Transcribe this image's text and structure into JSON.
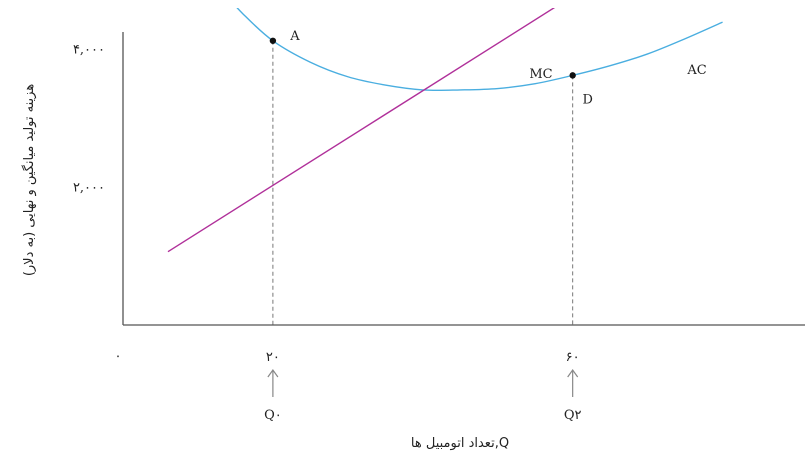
{
  "chart_data": {
    "type": "line",
    "ylabel": "هزینه تولید میانگین و نهایی (به دلار)",
    "xlabel": "Q,تعداد اتومبیل ها",
    "origin_label": "۰",
    "x_ticks": [
      {
        "value": 20,
        "label": "۲۰"
      },
      {
        "value": 60,
        "label": "۶۰"
      }
    ],
    "y_ticks": [
      {
        "value": 2000,
        "label": "۲,۰۰۰"
      },
      {
        "value": 4000,
        "label": "۴,۰۰۰"
      }
    ],
    "q_markers": [
      {
        "x": 20,
        "label": "Q۰"
      },
      {
        "x": 60,
        "label": "Q۲"
      }
    ],
    "xlim": [
      0,
      91
    ],
    "ylim": [
      0,
      4700
    ],
    "series": [
      {
        "name": "AC",
        "color": "#4aaee0",
        "x": [
          13,
          16,
          20,
          25,
          30,
          35,
          40,
          45,
          50,
          55,
          60,
          65,
          70,
          75,
          80
        ],
        "y": [
          4860,
          4500,
          4110,
          3800,
          3590,
          3470,
          3400,
          3400,
          3420,
          3490,
          3610,
          3750,
          3920,
          4140,
          4380
        ]
      },
      {
        "name": "MC",
        "color": "#b0309a",
        "x": [
          6,
          58
        ],
        "y": [
          1060,
          4620
        ]
      }
    ],
    "points": [
      {
        "label": "A",
        "x": 20,
        "y": 4110
      },
      {
        "label": "D",
        "x": 60,
        "y": 3610
      }
    ],
    "colors": {
      "axis": "#555555",
      "guide": "#777777",
      "arrow": "#888888"
    }
  }
}
